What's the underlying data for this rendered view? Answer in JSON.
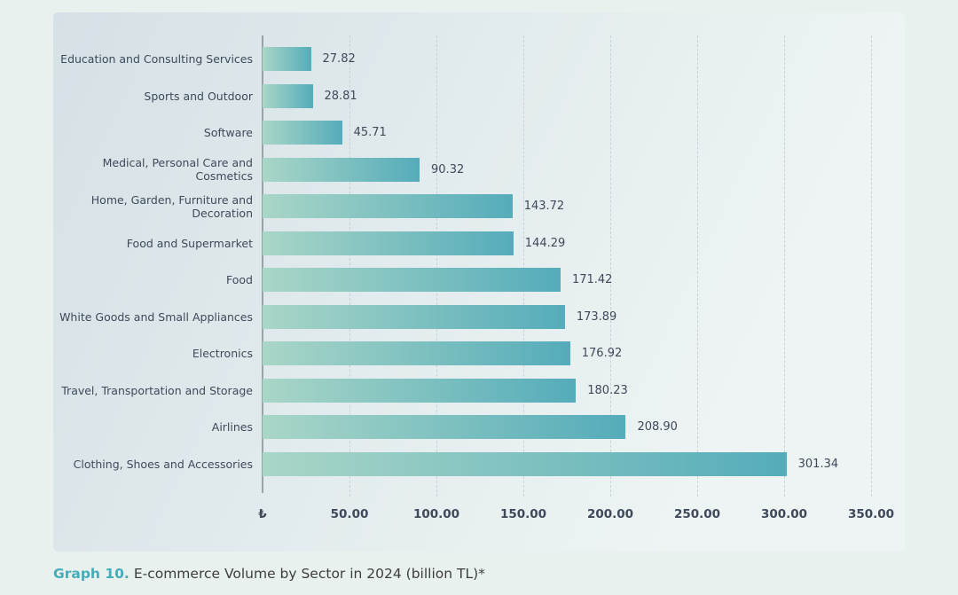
{
  "caption": {
    "prefix": "Graph 10.",
    "text": "E-commerce Volume by Sector in 2024 (billion TL)*"
  },
  "colors": {
    "page_bg": "#e9f1ef",
    "panel_bg_start": "#d5e1e6",
    "panel_bg_end": "#eef4f3",
    "bar_gradient_start": "#a9d6c7",
    "bar_gradient_end": "#55acba",
    "axis_line": "#97a2aa",
    "gridline": "#c7d2d7",
    "text": "#3e4959",
    "caption_accent": "#45acba",
    "caption_text": "#3d3d3d"
  },
  "chart_data": {
    "type": "bar",
    "orientation": "horizontal",
    "title": "E-commerce Volume by Sector in 2024 (billion TL)",
    "categories": [
      "Education and Consulting Services",
      "Sports and Outdoor",
      "Software",
      "Medical, Personal Care and Cosmetics",
      "Home, Garden, Furniture and Decoration",
      "Food and Supermarket",
      "Food",
      "White Goods and Small Appliances",
      "Electronics",
      "Travel, Transportation and Storage",
      "Airlines",
      "Clothing, Shoes and Accessories"
    ],
    "values": [
      27.82,
      28.81,
      45.71,
      90.32,
      143.72,
      144.29,
      171.42,
      173.89,
      176.92,
      180.23,
      208.9,
      301.34
    ],
    "value_labels": [
      "27.82",
      "28.81",
      "45.71",
      "90.32",
      "143.72",
      "144.29",
      "171.42",
      "173.89",
      "176.92",
      "180.23",
      "208.90",
      "301.34"
    ],
    "x_ticks": [
      {
        "label": "₺",
        "value": 0
      },
      {
        "label": "50.00",
        "value": 50
      },
      {
        "label": "100.00",
        "value": 100
      },
      {
        "label": "150.00",
        "value": 150
      },
      {
        "label": "200.00",
        "value": 200
      },
      {
        "label": "250.00",
        "value": 250
      },
      {
        "label": "300.00",
        "value": 300
      },
      {
        "label": "350.00",
        "value": 350
      }
    ],
    "xlim": [
      0,
      350
    ],
    "xlabel": "",
    "ylabel": "",
    "grid": "dashed-vertical",
    "legend": "none",
    "unit": "billion TL"
  }
}
